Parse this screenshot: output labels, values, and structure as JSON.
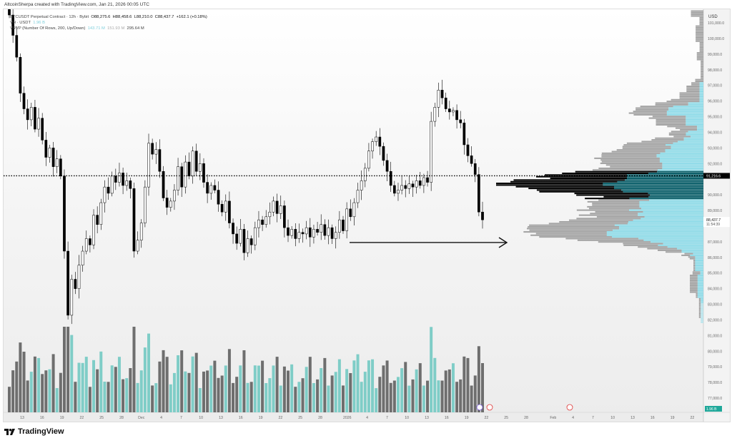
{
  "credit": "AltcoinSherpa created with TradingView.com, Jan 21, 2026 00:05 UTC",
  "legend": {
    "symbol": "BTCUSDT Perpetual Contract · 12h · Bybit",
    "open": "O88,275.6",
    "high": "H88,458.6",
    "low": "L88,210.0",
    "close": "C88,437.7",
    "change": "+162.1 (+0.18%)",
    "vol_label": "Vol · USDT",
    "vol_value": "1.96 B",
    "vrvp_label": "VRVP (Number Of Rows, 200, Up/Down)",
    "vrvp_up": "143.71 M",
    "vrvp_down": "151.93 M",
    "vrvp_total": "295.64 M"
  },
  "footer": {
    "brand": "TradingView",
    "logo_icon": "tradingview-logo-icon"
  },
  "chart_data": {
    "type": "candlestick",
    "interval": "12h",
    "currency": "USD",
    "ylim": [
      76500,
      101800
    ],
    "price_ticks": [
      "101,000.0",
      "100,000.0",
      "99,000.0",
      "98,000.0",
      "97,000.0",
      "96,000.0",
      "95,000.0",
      "94,000.0",
      "93,000.0",
      "92,000.0",
      "90,000.0",
      "89,000.0",
      "87,000.0",
      "86,000.0",
      "85,000.0",
      "84,000.0",
      "83,000.0",
      "82,000.0",
      "81,000.0",
      "80,000.0",
      "79,000.0",
      "78,000.0",
      "77,000.0"
    ],
    "price_tick_values": [
      101000,
      100000,
      99000,
      98000,
      97000,
      96000,
      95000,
      94000,
      93000,
      92000,
      90000,
      89000,
      87000,
      86000,
      85000,
      84000,
      83000,
      82000,
      81000,
      80000,
      79000,
      78000,
      77000
    ],
    "time_ticks": [
      "13",
      "16",
      "19",
      "22",
      "25",
      "28",
      "Dec",
      "4",
      "7",
      "10",
      "13",
      "16",
      "19",
      "22",
      "25",
      "28",
      "2026",
      "4",
      "7",
      "10",
      "13",
      "16",
      "19",
      "22",
      "25",
      "28",
      "Feb",
      "4",
      "7",
      "10",
      "13",
      "16",
      "19",
      "22"
    ],
    "closes_k": [
      101.5,
      100.2,
      98.8,
      96.5,
      95.5,
      94.8,
      95.6,
      94.2,
      94.9,
      93.5,
      92.4,
      93.0,
      91.8,
      92.3,
      91.2,
      86.4,
      82.3,
      84.6,
      84.0,
      85.5,
      86.4,
      87.2,
      86.8,
      88.7,
      88.1,
      89.5,
      90.5,
      90.1,
      91.2,
      90.8,
      91.4,
      90.6,
      90.9,
      90.4,
      86.4,
      87.1,
      88.2,
      90.5,
      93.3,
      92.6,
      92.9,
      91.5,
      89.8,
      89.2,
      89.6,
      90.3,
      91.8,
      90.5,
      92.1,
      91.2,
      92.8,
      91.5,
      92.0,
      90.8,
      90.1,
      90.6,
      90.3,
      89.4,
      88.9,
      89.6,
      88.2,
      87.5,
      86.9,
      87.8,
      86.3,
      87.2,
      86.8,
      87.9,
      88.4,
      88.1,
      88.6,
      88.9,
      89.6,
      88.8,
      89.3,
      87.9,
      87.4,
      87.8,
      87.2,
      87.6,
      87.5,
      87.9,
      87.3,
      87.8,
      87.6,
      88.1,
      87.4,
      87.9,
      87.2,
      87.6,
      88.4,
      87.7,
      89.1,
      88.6,
      89.5,
      90.3,
      90.9,
      91.7,
      92.8,
      93.4,
      93.7,
      93.1,
      92.2,
      91.5,
      90.6,
      90.1,
      90.3,
      90.6,
      90.4,
      90.7,
      90.5,
      90.9,
      90.6,
      91.1,
      90.8,
      94.7,
      95.6,
      96.7,
      96.2,
      95.5,
      95.3,
      95.4,
      94.8,
      94.6,
      93.2,
      92.5,
      92.0,
      91.3,
      88.9,
      88.4
    ],
    "last_price": "88,437.7",
    "countdown": "11:54:39",
    "poc_price": "91,216.6",
    "poc_value": 91216.6,
    "volume_last": "1.96 B",
    "colors": {
      "candle": "#000000",
      "candle_up_fill": "#ffffff",
      "vol_up": "#7fcdc7",
      "vol_down": "#6e6e6e",
      "vrvp_up": "#8fdbe8",
      "vrvp_down": "#a3a3a3",
      "poc": "#000000"
    },
    "annotation": "horizontal arrow pointing right at ~87,000"
  }
}
